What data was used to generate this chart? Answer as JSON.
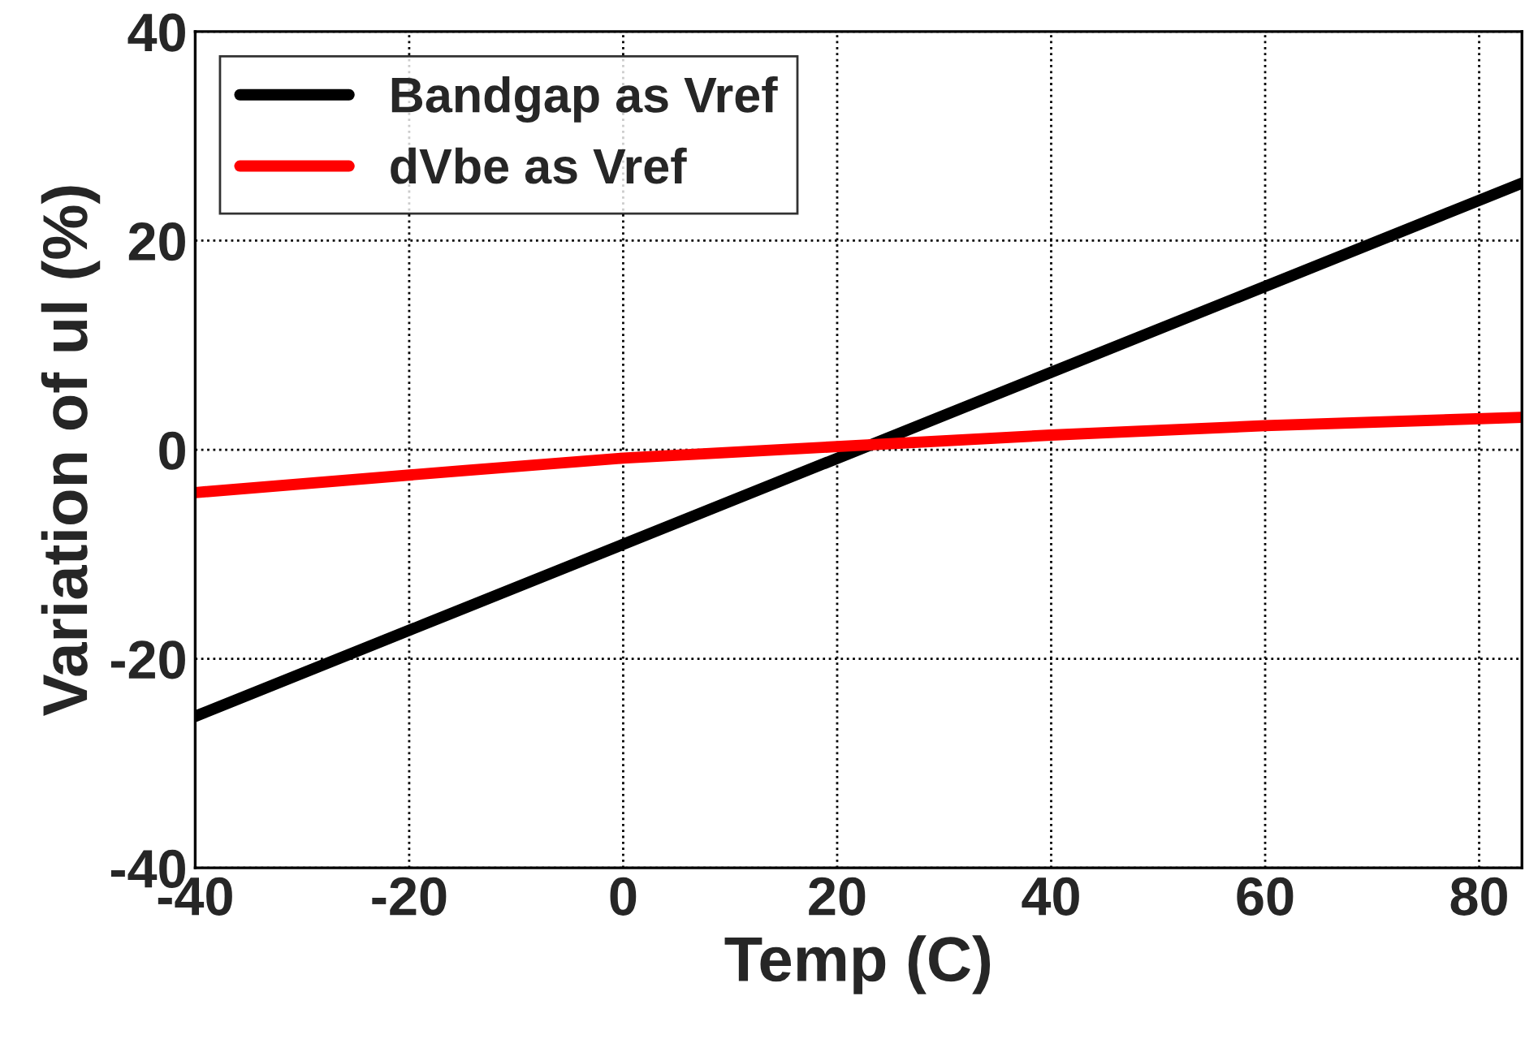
{
  "chart_data": {
    "type": "line",
    "xlabel": "Temp (C)",
    "ylabel": "Variation of ul (%)",
    "xlim": [
      -40,
      84
    ],
    "xticks": [
      -40,
      -20,
      0,
      20,
      40,
      60,
      80
    ],
    "ylim": [
      -40,
      40
    ],
    "yticks": [
      -40,
      -20,
      0,
      20,
      40
    ],
    "grid": true,
    "legend": "top left",
    "line_style": "solid",
    "series": [
      {
        "name": "Bandgap as Vref",
        "color": "#000000",
        "x": [
          -40,
          84
        ],
        "values": [
          -25.5,
          25.5
        ]
      },
      {
        "name": "dVbe as Vref",
        "color": "#ff0000",
        "x": [
          -40,
          -15,
          0,
          20,
          40,
          60,
          84
        ],
        "values": [
          -4.1,
          -2.0,
          -0.8,
          0.3,
          1.4,
          2.3,
          3.1
        ]
      }
    ]
  }
}
